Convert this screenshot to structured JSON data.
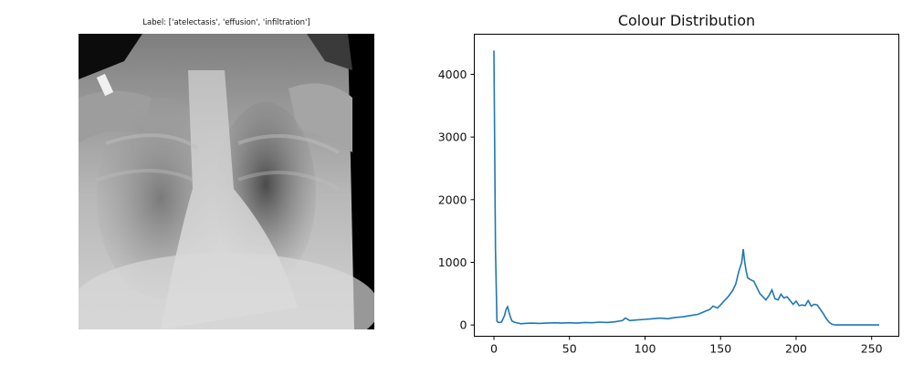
{
  "image_panel": {
    "label": "Label: ['atelectasis', 'effusion', 'infiltration']"
  },
  "chart_data": {
    "type": "line",
    "title": "Colour Distribution",
    "xlabel": "",
    "ylabel": "",
    "xlim": [
      -13,
      268
    ],
    "ylim": [
      -180,
      4640
    ],
    "x_ticks": [
      0,
      50,
      100,
      150,
      200,
      250
    ],
    "y_ticks": [
      0,
      1000,
      2000,
      3000,
      4000
    ],
    "grid": false,
    "color": "#1f77b4",
    "series": [
      {
        "x": [
          0,
          1,
          2,
          3,
          5,
          7,
          8,
          9,
          10,
          11,
          12,
          14,
          16,
          18,
          20,
          25,
          30,
          35,
          40,
          45,
          50,
          55,
          60,
          65,
          70,
          75,
          80,
          85,
          87,
          90,
          95,
          100,
          105,
          110,
          115,
          120,
          125,
          130,
          135,
          140,
          143,
          145,
          148,
          150,
          153,
          155,
          158,
          160,
          162,
          164,
          165,
          166,
          167,
          168,
          170,
          172,
          174,
          176,
          178,
          180,
          182,
          184,
          186,
          188,
          190,
          192,
          194,
          196,
          198,
          200,
          202,
          204,
          206,
          208,
          210,
          212,
          214,
          216,
          218,
          220,
          222,
          224,
          226,
          230,
          240,
          250,
          255
        ],
        "y": [
          4380,
          1200,
          60,
          40,
          45,
          150,
          250,
          290,
          200,
          120,
          60,
          40,
          30,
          20,
          25,
          30,
          25,
          30,
          35,
          30,
          35,
          30,
          40,
          35,
          45,
          40,
          50,
          70,
          110,
          70,
          80,
          90,
          100,
          110,
          100,
          120,
          130,
          150,
          170,
          220,
          250,
          300,
          270,
          320,
          400,
          450,
          550,
          650,
          850,
          1000,
          1210,
          1000,
          850,
          750,
          720,
          700,
          600,
          500,
          450,
          400,
          470,
          560,
          420,
          400,
          490,
          430,
          450,
          390,
          330,
          380,
          310,
          320,
          310,
          390,
          300,
          330,
          320,
          250,
          180,
          100,
          40,
          10,
          0,
          0,
          0,
          0,
          0
        ]
      }
    ]
  }
}
